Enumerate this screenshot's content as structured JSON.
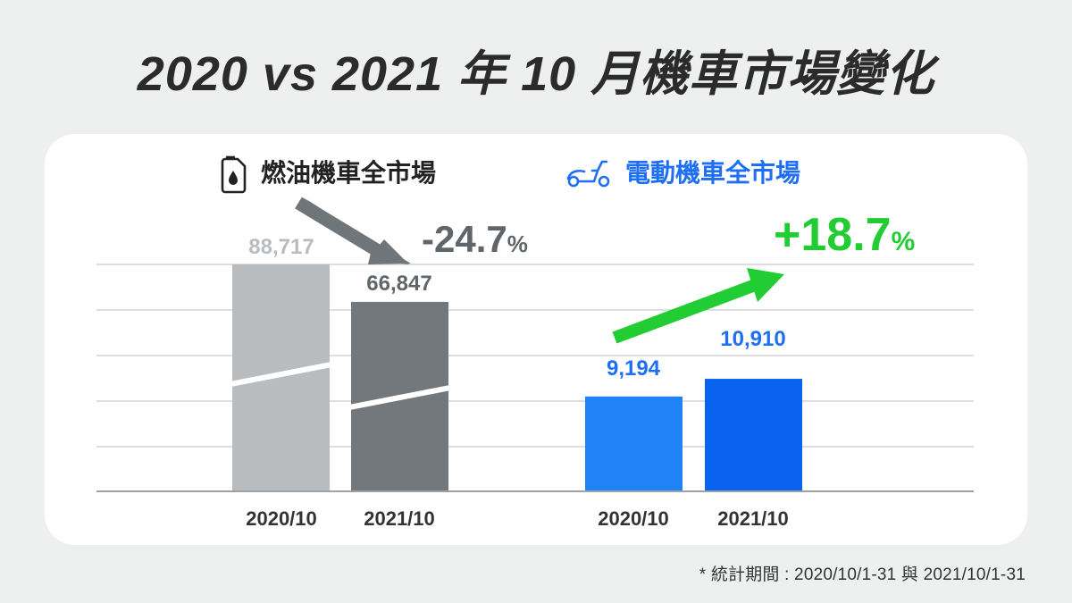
{
  "title": "2020 vs 2021 年 10 月機車市場變化",
  "footnote": "* 統計期間 : 2020/10/1-31 與 2021/10/1-31",
  "colors": {
    "gas_2020": "#b9bcbf",
    "gas_2021": "#72787c",
    "ev_2020": "#1f82f5",
    "ev_2021": "#0a63f0",
    "ev_text": "#1e6ff2",
    "gas_text": "#5f6569",
    "increase": "#22cc33",
    "decrease_arrow": "#6f767a"
  },
  "chart_data": [
    {
      "type": "bar",
      "title": "燃油機車全市場",
      "icon": "fuel-can-icon",
      "categories": [
        "2020/10",
        "2021/10"
      ],
      "values": [
        88717,
        66847
      ],
      "value_labels": [
        "88,717",
        "66,847"
      ],
      "change_label": "-24.7",
      "change_unit": "%",
      "ylim": [
        0,
        90000
      ],
      "grid": true,
      "axis_break": true
    },
    {
      "type": "bar",
      "title": "電動機車全市場",
      "icon": "scooter-icon",
      "categories": [
        "2020/10",
        "2021/10"
      ],
      "values": [
        9194,
        10910
      ],
      "value_labels": [
        "9,194",
        "10,910"
      ],
      "change_label": "+18.7",
      "change_unit": "%",
      "ylim": [
        0,
        22000
      ],
      "grid": true,
      "axis_break": false
    }
  ]
}
